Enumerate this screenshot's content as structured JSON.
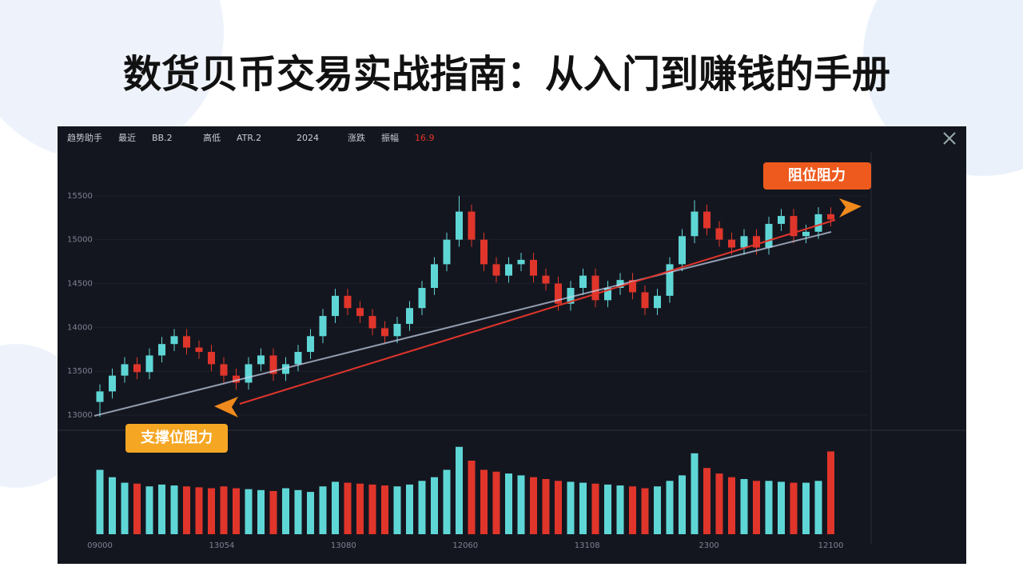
{
  "header": {
    "title": "数货贝币交易实战指南：从入门到赚钱的手册"
  },
  "toolbar": [
    "趋势助手",
    "最近",
    "BB.2",
    "高低",
    "ATR.2",
    "2024",
    "涨跌",
    "振幅",
    "16.9"
  ],
  "chart_data": {
    "type": "candlestick",
    "annotations": [
      "阻位阻力",
      "支撑位阻力"
    ],
    "open": [
      13150,
      13270,
      13450,
      13580,
      13490,
      13680,
      13810,
      13900,
      13770,
      13720,
      13580,
      13450,
      13370,
      13580,
      13680,
      13470,
      13580,
      13720,
      13900,
      14130,
      14360,
      14220,
      14130,
      13990,
      13900,
      14040,
      14220,
      14450,
      14720,
      15000,
      15320,
      15000,
      14720,
      14590,
      14720,
      14770,
      14590,
      14500,
      14270,
      14450,
      14590,
      14310,
      14450,
      14540,
      14400,
      14220,
      14360,
      14720,
      15040,
      15320,
      15130,
      15000,
      14910,
      15040,
      14910,
      15180,
      15270,
      15040,
      15090,
      15290
    ],
    "high": [
      13350,
      13530,
      13660,
      13660,
      13760,
      13890,
      13980,
      13980,
      13850,
      13800,
      13660,
      13530,
      13660,
      13760,
      13760,
      13660,
      13800,
      13980,
      14210,
      14440,
      14440,
      14300,
      14210,
      14070,
      14120,
      14300,
      14530,
      14800,
      15080,
      15500,
      15400,
      15080,
      14800,
      14800,
      14850,
      14850,
      14670,
      14580,
      14530,
      14670,
      14670,
      14530,
      14620,
      14620,
      14480,
      14440,
      14800,
      15120,
      15450,
      15400,
      15210,
      15080,
      15120,
      15120,
      15260,
      15350,
      15350,
      15170,
      15370,
      15370
    ],
    "low": [
      12980,
      13190,
      13370,
      13410,
      13410,
      13600,
      13730,
      13690,
      13640,
      13500,
      13370,
      13290,
      13290,
      13500,
      13390,
      13390,
      13500,
      13640,
      13820,
      14050,
      14140,
      14050,
      13910,
      13820,
      13820,
      13960,
      14140,
      14370,
      14640,
      14920,
      14920,
      14640,
      14510,
      14510,
      14640,
      14510,
      14420,
      14190,
      14190,
      14370,
      14230,
      14230,
      14370,
      14320,
      14140,
      14140,
      14280,
      14640,
      14960,
      15050,
      14920,
      14830,
      14830,
      14830,
      14830,
      15100,
      14960,
      14960,
      15010,
      15150
    ],
    "close": [
      13270,
      13450,
      13580,
      13490,
      13680,
      13810,
      13900,
      13770,
      13720,
      13580,
      13450,
      13370,
      13580,
      13680,
      13470,
      13580,
      13720,
      13900,
      14130,
      14360,
      14220,
      14130,
      13990,
      13900,
      14040,
      14220,
      14450,
      14720,
      15000,
      15320,
      15000,
      14720,
      14590,
      14720,
      14770,
      14590,
      14500,
      14270,
      14450,
      14590,
      14310,
      14450,
      14540,
      14400,
      14220,
      14360,
      14720,
      15040,
      15320,
      15130,
      15000,
      14910,
      15040,
      14910,
      15180,
      15270,
      15040,
      15090,
      15290,
      15230
    ],
    "volume": [
      70,
      62,
      56,
      55,
      52,
      54,
      53,
      52,
      51,
      50,
      52,
      50,
      49,
      48,
      47,
      50,
      48,
      46,
      52,
      57,
      56,
      55,
      54,
      53,
      52,
      54,
      58,
      62,
      70,
      95,
      80,
      70,
      68,
      66,
      64,
      62,
      60,
      58,
      57,
      56,
      55,
      54,
      53,
      52,
      50,
      52,
      58,
      64,
      88,
      72,
      66,
      62,
      60,
      58,
      58,
      57,
      56,
      56,
      58,
      90
    ],
    "up_color": "#5fd6d6",
    "down_color": "#e0352b",
    "ylim": [
      12900,
      16000
    ],
    "yticks": [
      13000,
      13500,
      14000,
      14500,
      15000,
      15500
    ],
    "volume_ylim": [
      0,
      100
    ],
    "x_labels": [
      "09000",
      "13054",
      "13080",
      "12060",
      "13108",
      "2300",
      "12100"
    ]
  }
}
